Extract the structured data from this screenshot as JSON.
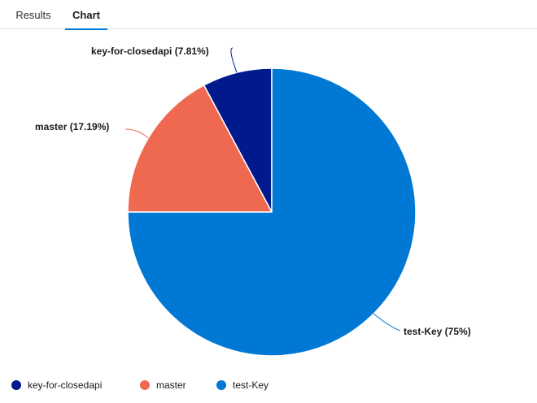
{
  "tabs": [
    {
      "label": "Results",
      "active": false
    },
    {
      "label": "Chart",
      "active": true
    }
  ],
  "chart_data": {
    "type": "pie",
    "title": "",
    "slices": [
      {
        "name": "key-for-closedapi",
        "value": 7.81,
        "label": "key-for-closedapi (7.81%)",
        "color": "#001a8c"
      },
      {
        "name": "master",
        "value": 17.19,
        "label": "master (17.19%)",
        "color": "#ef6950"
      },
      {
        "name": "test-Key",
        "value": 75,
        "label": "test-Key (75%)",
        "color": "#0078d4"
      }
    ],
    "legend_position": "bottom-left"
  }
}
